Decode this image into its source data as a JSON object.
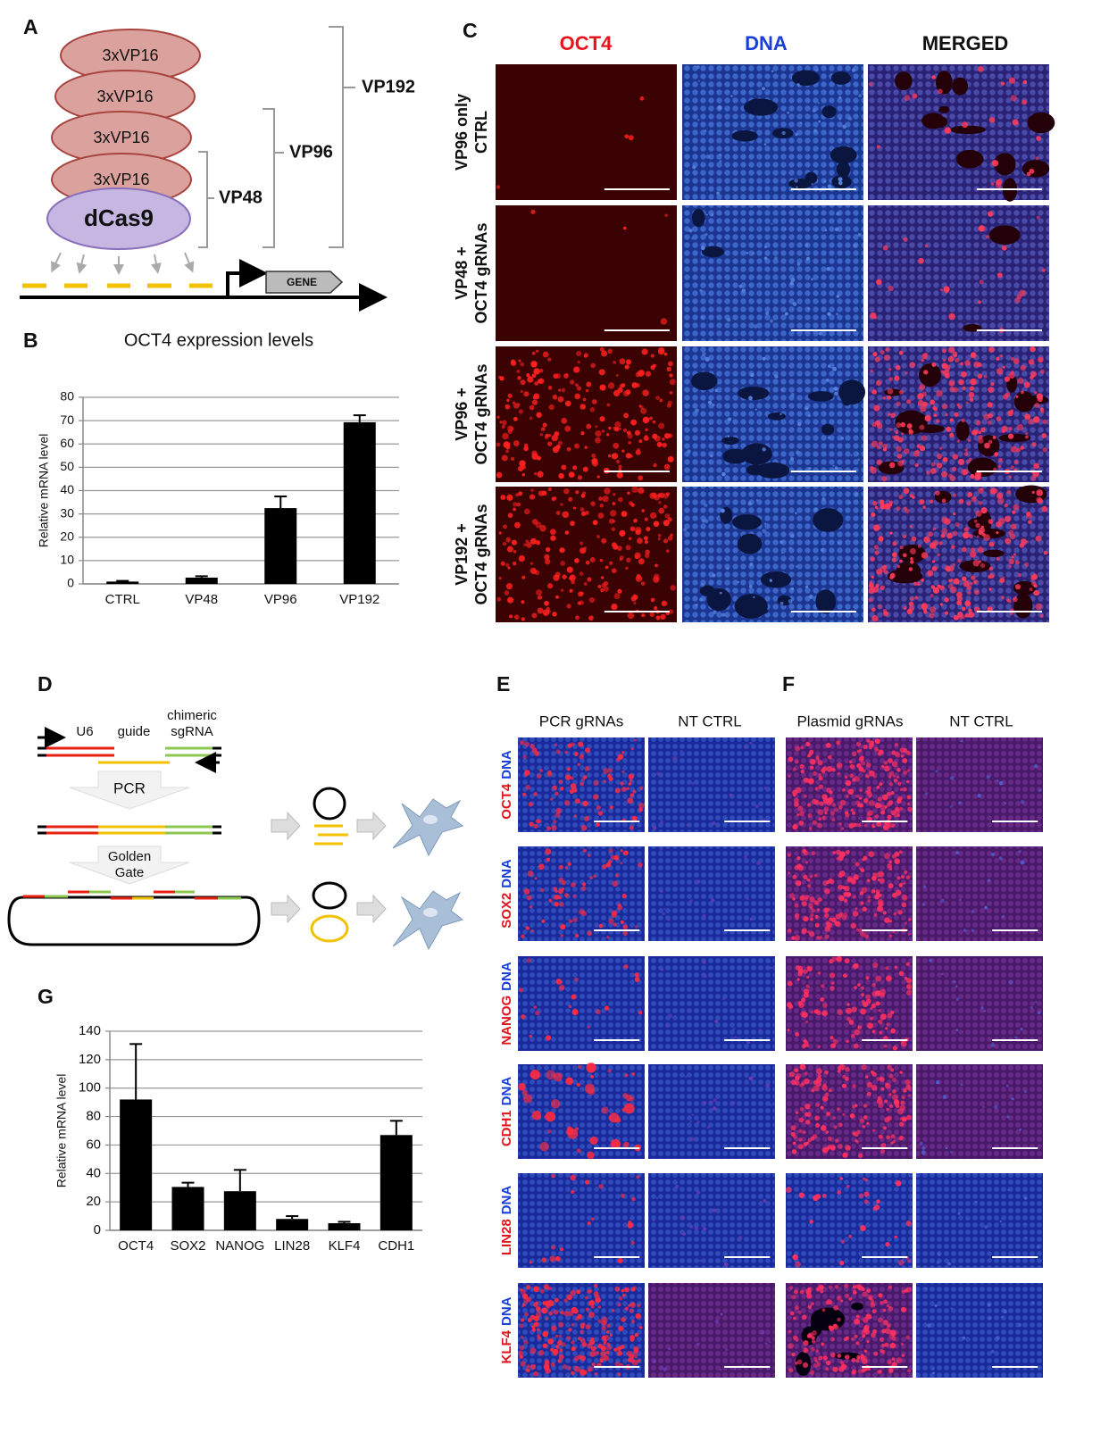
{
  "panel_labels": [
    "A",
    "B",
    "C",
    "D",
    "E",
    "F",
    "G"
  ],
  "panel_a": {
    "domains": [
      "3xVP16",
      "3xVP16",
      "3xVP16",
      "3xVP16"
    ],
    "base": "dCas9",
    "gene": "GENE",
    "brackets": [
      "VP48",
      "VP96",
      "VP192"
    ]
  },
  "panel_c": {
    "columns": [
      "OCT4",
      "DNA",
      "MERGED"
    ],
    "rows": [
      [
        "VP96 only",
        "CTRL"
      ],
      [
        "VP48 +",
        "OCT4 gRNAs"
      ],
      [
        "VP96 +",
        "OCT4 gRNAs"
      ],
      [
        "VP192 +",
        "OCT4 gRNAs"
      ]
    ]
  },
  "panel_d": {
    "u6": "U6",
    "guide": "guide",
    "sgrna": [
      "chimeric",
      "sgRNA"
    ],
    "pcr": "PCR",
    "golden_gate": [
      "Golden",
      "Gate"
    ]
  },
  "panel_ef": {
    "e_columns": [
      "PCR gRNAs",
      "NT CTRL"
    ],
    "f_columns": [
      "Plasmid gRNAs",
      "NT CTRL"
    ],
    "genes": [
      "OCT4",
      "SOX2",
      "NANOG",
      "CDH1",
      "LIN28",
      "KLF4"
    ],
    "stain": "DNA"
  },
  "chart_data": [
    {
      "type": "bar",
      "title": "OCT4 expression levels",
      "ylabel": "Relative mRNA level",
      "categories": [
        "CTRL",
        "VP48",
        "VP96",
        "VP192"
      ],
      "values": [
        1,
        2.7,
        32.5,
        69.3
      ],
      "errors": [
        0.3,
        0.6,
        5,
        3
      ],
      "color": "#000000",
      "ylim": [
        0,
        80
      ],
      "yticks": [
        0,
        10,
        20,
        30,
        40,
        50,
        60,
        70,
        80
      ],
      "grid": true
    },
    {
      "type": "bar",
      "ylabel": "Relative mRNA level",
      "categories": [
        "OCT4",
        "SOX2",
        "NANOG",
        "LIN28",
        "KLF4",
        "CDH1"
      ],
      "values": [
        92,
        30.5,
        27.5,
        8,
        5,
        67
      ],
      "errors": [
        39,
        3,
        15,
        2,
        1,
        10
      ],
      "color": "#000000",
      "ylim": [
        0,
        140
      ],
      "yticks": [
        0,
        20,
        40,
        60,
        80,
        100,
        120,
        140
      ],
      "grid": true
    }
  ]
}
